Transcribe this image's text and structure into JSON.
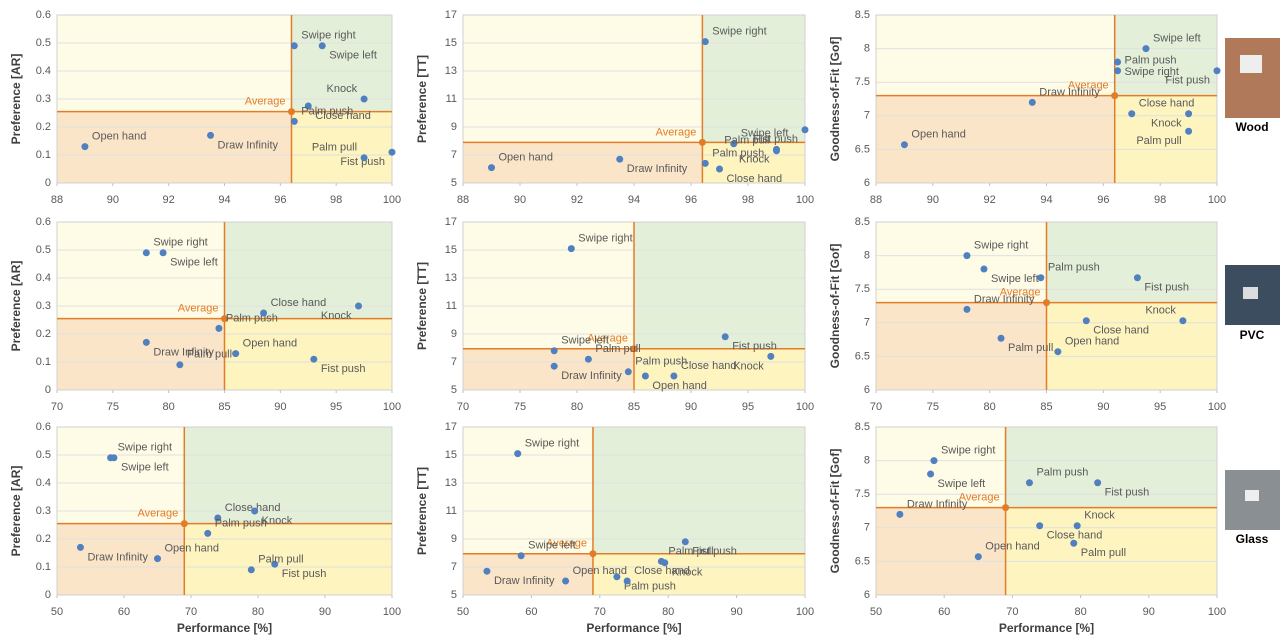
{
  "chart_data": [
    {
      "type": "scatter",
      "ylabel": "Preference [AR]",
      "xlim": [
        88,
        100
      ],
      "xticks": [
        88,
        90,
        92,
        94,
        96,
        98,
        100
      ],
      "ylim": [
        0,
        0.6
      ],
      "yticks": [
        0,
        0.1,
        0.2,
        0.3,
        0.4,
        0.5,
        0.6
      ],
      "labels": [
        "Swipe right",
        "Swipe left",
        "Knock",
        "Close hand",
        "Palm push",
        "Draw Infinity",
        "Open hand",
        "Fist push",
        "Palm pull"
      ],
      "x": [
        96.5,
        97.5,
        99,
        97,
        96.5,
        93.5,
        89,
        100,
        99
      ],
      "y": [
        0.49,
        0.49,
        0.3,
        0.275,
        0.22,
        0.17,
        0.13,
        0.11,
        0.09
      ],
      "average": {
        "label": "Average",
        "x": 96.4,
        "y": 0.255
      }
    },
    {
      "type": "scatter",
      "ylabel": "Preference [TT]",
      "xlim": [
        88,
        100
      ],
      "xticks": [
        88,
        90,
        92,
        94,
        96,
        98,
        100
      ],
      "ylim": [
        5,
        17
      ],
      "yticks": [
        5,
        7,
        9,
        11,
        13,
        15,
        17
      ],
      "labels": [
        "Swipe right",
        "Fist push",
        "Swipe left",
        "Knock",
        "Palm pull",
        "Draw Infinity",
        "Palm push",
        "Close hand",
        "Open hand"
      ],
      "x": [
        96.5,
        100,
        97.5,
        99,
        99,
        93.5,
        96.5,
        97,
        89
      ],
      "y": [
        15.1,
        8.8,
        7.8,
        7.4,
        7.3,
        6.7,
        6.4,
        6.0,
        6.1
      ],
      "average": {
        "label": "Average",
        "x": 96.4,
        "y": 7.9
      }
    },
    {
      "type": "scatter",
      "ylabel": "Goodness-of-Fit [Gof]",
      "xlim": [
        88,
        100
      ],
      "xticks": [
        88,
        90,
        92,
        94,
        96,
        98,
        100
      ],
      "ylim": [
        6,
        8.5
      ],
      "yticks": [
        6,
        6.5,
        7,
        7.5,
        8,
        8.5
      ],
      "labels": [
        "Swipe left",
        "Swipe right",
        "Palm push",
        "Fist push",
        "Draw Infinity",
        "Knock",
        "Close hand",
        "Palm pull",
        "Open hand"
      ],
      "x": [
        97.5,
        96.5,
        96.5,
        100,
        93.5,
        99,
        97,
        99,
        89
      ],
      "y": [
        8.0,
        7.8,
        7.67,
        7.67,
        7.2,
        7.03,
        7.03,
        6.77,
        6.57
      ],
      "average": {
        "label": "Average",
        "x": 96.4,
        "y": 7.3
      }
    },
    {
      "type": "scatter",
      "ylabel": "Preference [AR]",
      "xlim": [
        70,
        100
      ],
      "xticks": [
        70,
        75,
        80,
        85,
        90,
        95,
        100
      ],
      "ylim": [
        0,
        0.6
      ],
      "yticks": [
        0,
        0.1,
        0.2,
        0.3,
        0.4,
        0.5,
        0.6
      ],
      "labels": [
        "Swipe right",
        "Swipe left",
        "Close hand",
        "Knock",
        "Palm push",
        "Draw Infinity",
        "Open hand",
        "Fist push",
        "Palm pull"
      ],
      "x": [
        78,
        79.5,
        88.5,
        97,
        84.5,
        78,
        86,
        93,
        81
      ],
      "y": [
        0.49,
        0.49,
        0.275,
        0.3,
        0.22,
        0.17,
        0.13,
        0.11,
        0.09
      ],
      "average": {
        "label": "Average",
        "x": 85,
        "y": 0.255
      }
    },
    {
      "type": "scatter",
      "ylabel": "Preference [TT]",
      "xlim": [
        70,
        100
      ],
      "xticks": [
        70,
        75,
        80,
        85,
        90,
        95,
        100
      ],
      "ylim": [
        5,
        17
      ],
      "yticks": [
        5,
        7,
        9,
        11,
        13,
        15,
        17
      ],
      "labels": [
        "Swipe right",
        "Fist push",
        "Swipe left",
        "Knock",
        "Palm pull",
        "Draw Infinity",
        "Palm push",
        "Open hand",
        "Close hand"
      ],
      "x": [
        79.5,
        93,
        78,
        97,
        81,
        78,
        84.5,
        86,
        88.5
      ],
      "y": [
        15.1,
        8.8,
        7.8,
        7.4,
        7.2,
        6.7,
        6.3,
        6.0,
        6.0
      ],
      "average": {
        "label": "Average",
        "x": 85,
        "y": 7.95
      }
    },
    {
      "type": "scatter",
      "ylabel": "Goodness-of-Fit [Gof]",
      "xlim": [
        70,
        100
      ],
      "xticks": [
        70,
        75,
        80,
        85,
        90,
        95,
        100
      ],
      "ylim": [
        6,
        8.5
      ],
      "yticks": [
        6,
        6.5,
        7,
        7.5,
        8,
        8.5
      ],
      "labels": [
        "Swipe right",
        "Swipe left",
        "Palm push",
        "Fist push",
        "Draw Infinity",
        "Close hand",
        "Knock",
        "Palm pull",
        "Open hand"
      ],
      "x": [
        78,
        79.5,
        84.5,
        93,
        78,
        88.5,
        97,
        81,
        86
      ],
      "y": [
        8.0,
        7.8,
        7.67,
        7.67,
        7.2,
        7.03,
        7.03,
        6.77,
        6.57
      ],
      "average": {
        "label": "Average",
        "x": 85,
        "y": 7.3
      }
    },
    {
      "type": "scatter",
      "ylabel": "Preference [AR]",
      "xlabel": "Performance [%]",
      "xlim": [
        50,
        100
      ],
      "xticks": [
        50,
        60,
        70,
        80,
        90,
        100
      ],
      "ylim": [
        0,
        0.6
      ],
      "yticks": [
        0,
        0.1,
        0.2,
        0.3,
        0.4,
        0.5,
        0.6
      ],
      "labels": [
        "Swipe right",
        "Swipe left",
        "Close hand",
        "Knock",
        "Palm push",
        "Draw Infinity",
        "Open hand",
        "Fist push",
        "Palm pull"
      ],
      "x": [
        58,
        58.5,
        74,
        79.5,
        72.5,
        53.5,
        65,
        82.5,
        79
      ],
      "y": [
        0.49,
        0.49,
        0.275,
        0.3,
        0.22,
        0.17,
        0.13,
        0.11,
        0.09
      ],
      "average": {
        "label": "Average",
        "x": 69,
        "y": 0.255
      }
    },
    {
      "type": "scatter",
      "ylabel": "Preference [TT]",
      "xlabel": "Performance [%]",
      "xlim": [
        50,
        100
      ],
      "xticks": [
        50,
        60,
        70,
        80,
        90,
        100
      ],
      "ylim": [
        5,
        17
      ],
      "yticks": [
        5,
        7,
        9,
        11,
        13,
        15,
        17
      ],
      "labels": [
        "Swipe right",
        "Fist push",
        "Swipe left",
        "Knock",
        "Palm pull",
        "Draw Infinity",
        "Open hand",
        "Palm push",
        "Close hand"
      ],
      "x": [
        58,
        82.5,
        58.5,
        79.5,
        79,
        53.5,
        65,
        72.5,
        74
      ],
      "y": [
        15.1,
        8.8,
        7.8,
        7.3,
        7.4,
        6.7,
        6.0,
        6.3,
        6.0
      ],
      "average": {
        "label": "Average",
        "x": 69,
        "y": 7.95
      }
    },
    {
      "type": "scatter",
      "ylabel": "Goodness-of-Fit [Gof]",
      "xlabel": "Performance [%]",
      "xlim": [
        50,
        100
      ],
      "xticks": [
        50,
        60,
        70,
        80,
        90,
        100
      ],
      "ylim": [
        6,
        8.5
      ],
      "yticks": [
        6,
        6.5,
        7,
        7.5,
        8,
        8.5
      ],
      "labels": [
        "Swipe right",
        "Swipe left",
        "Palm push",
        "Fist push",
        "Draw Infinity",
        "Close hand",
        "Knock",
        "Palm pull",
        "Open hand"
      ],
      "x": [
        58.5,
        58,
        72.5,
        82.5,
        53.5,
        74,
        79.5,
        79,
        65
      ],
      "y": [
        8.0,
        7.8,
        7.67,
        7.67,
        7.2,
        7.03,
        7.03,
        6.77,
        6.57
      ],
      "average": {
        "label": "Average",
        "x": 69,
        "y": 7.3
      }
    }
  ],
  "materials": [
    "Wood",
    "PVC",
    "Glass"
  ]
}
